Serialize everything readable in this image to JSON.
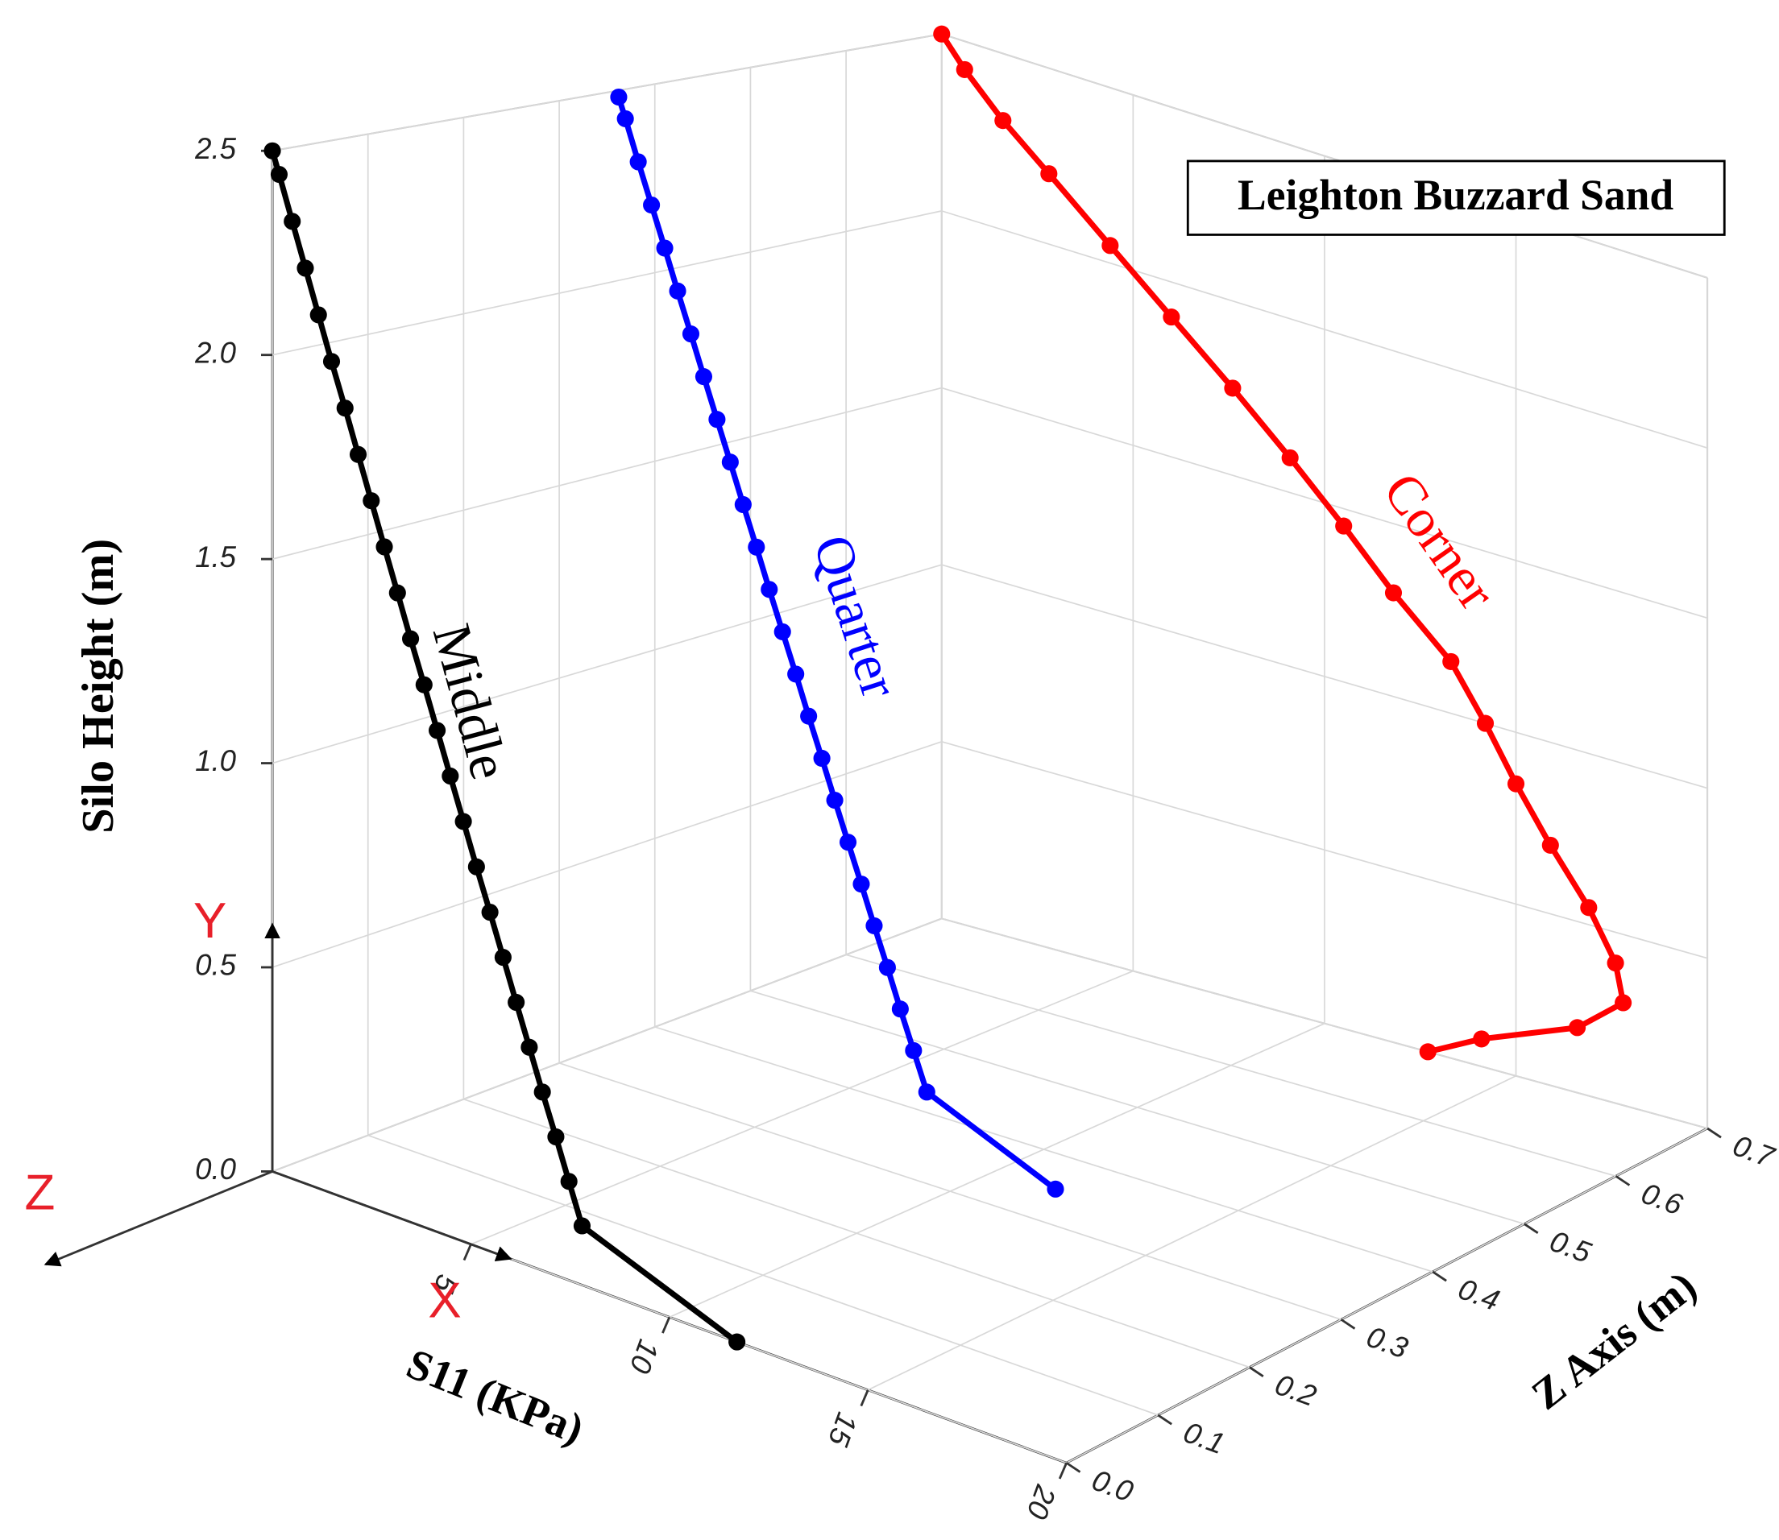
{
  "chart_data": {
    "type": "line3d",
    "xlabel": "S11 (KPa)",
    "ylabel": "Silo Height (m)",
    "zlabel": "Z Axis (m)",
    "annotation": "Leighton Buzzard Sand",
    "axis_indicators": [
      "X",
      "Y",
      "Z"
    ],
    "xlim": [
      0,
      20
    ],
    "ylim": [
      0,
      2.5
    ],
    "zlim": [
      0,
      0.7
    ],
    "xticks": [
      5,
      10,
      15,
      20
    ],
    "yticks": [
      {
        "value": 0,
        "label": "0.0"
      },
      0.5,
      {
        "value": 1,
        "label": "1.0"
      },
      1.5,
      {
        "value": 2,
        "label": "2.0"
      },
      2.5
    ],
    "zticks": [
      {
        "value": 0,
        "label": "0.0"
      },
      0.1,
      0.2,
      0.3,
      0.4,
      0.5,
      0.6,
      0.7
    ],
    "grid": true,
    "series": [
      {
        "name": "Middle",
        "color": "#000000",
        "z": 0,
        "x": [
          11.7,
          7.8,
          7.47,
          7.14,
          6.8,
          6.47,
          6.14,
          5.81,
          5.48,
          5.14,
          4.81,
          4.48,
          4.15,
          3.82,
          3.48,
          3.15,
          2.82,
          2.49,
          2.16,
          1.83,
          1.49,
          1.16,
          0.83,
          0.5,
          0.17,
          0
        ],
        "values": [
          0,
          0.15,
          0.25,
          0.35,
          0.45,
          0.55,
          0.65,
          0.75,
          0.85,
          0.95,
          1.05,
          1.15,
          1.25,
          1.35,
          1.45,
          1.55,
          1.65,
          1.75,
          1.85,
          1.95,
          2.05,
          2.15,
          2.25,
          2.35,
          2.45,
          2.5
        ]
      },
      {
        "name": "Quarter",
        "color": "#0000ff",
        "z": 0.35,
        "x": [
          11.5,
          8.2,
          7.86,
          7.52,
          7.19,
          6.85,
          6.52,
          6.18,
          5.84,
          5.51,
          5.17,
          4.84,
          4.5,
          4.16,
          3.83,
          3.49,
          3.16,
          2.82,
          2.48,
          2.15,
          1.81,
          1.48,
          1.14,
          0.8,
          0.47,
          0.3
        ],
        "values": [
          0,
          0.15,
          0.25,
          0.35,
          0.45,
          0.55,
          0.65,
          0.75,
          0.85,
          0.95,
          1.05,
          1.15,
          1.25,
          1.35,
          1.45,
          1.55,
          1.65,
          1.75,
          1.85,
          1.95,
          2.05,
          2.15,
          2.25,
          2.35,
          2.45,
          2.5
        ]
      },
      {
        "name": "Corner",
        "color": "#ff0000",
        "z": 0.7,
        "x": [
          12.7,
          14.1,
          16.6,
          17.8,
          17.6,
          16.9,
          15.9,
          15.0,
          14.2,
          13.3,
          11.8,
          10.5,
          9.1,
          7.6,
          6.0,
          4.4,
          2.8,
          1.6,
          0.6,
          0
        ],
        "values": [
          0,
          0.08,
          0.19,
          0.3,
          0.41,
          0.55,
          0.7,
          0.85,
          1.0,
          1.15,
          1.3,
          1.45,
          1.6,
          1.75,
          1.9,
          2.05,
          2.2,
          2.31,
          2.42,
          2.5
        ]
      }
    ]
  }
}
